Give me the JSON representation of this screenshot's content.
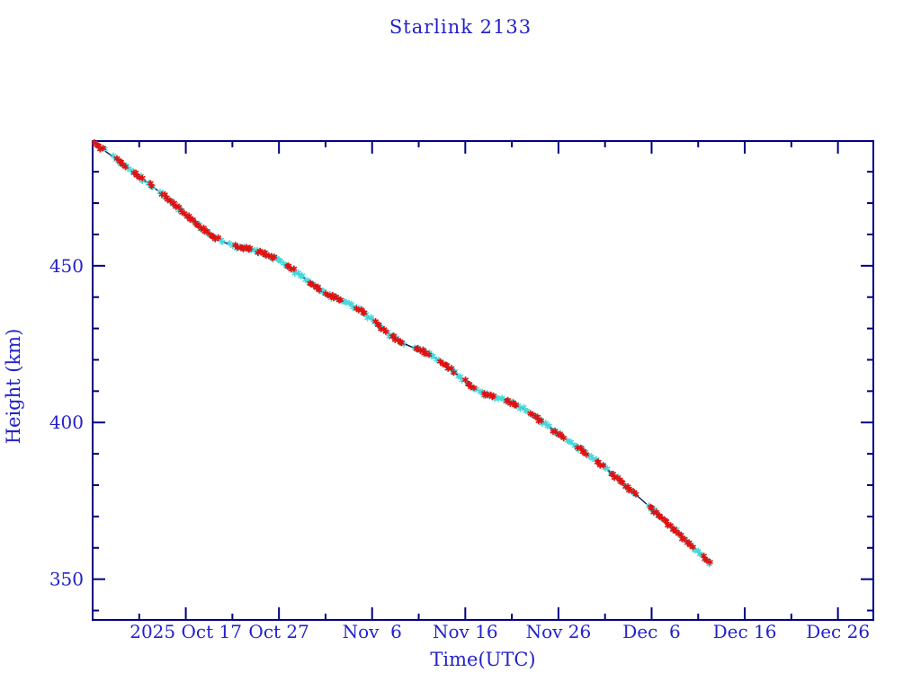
{
  "title": "Starlink 2133",
  "colors": {
    "background": "#ffffff",
    "frame": "#000080",
    "text": "#2222cc",
    "line": "#000048",
    "marker_primary": "#47d8dc",
    "marker_secondary": "#e01111"
  },
  "chart_data": {
    "type": "line",
    "title": "Starlink 2133",
    "xlabel": "Time(UTC)",
    "ylabel": "Height (km)",
    "grid": false,
    "legend": null,
    "x_axis": {
      "unit": "days since 2025-10-07 UTC",
      "min_day": 0,
      "max_day": 83.8,
      "major_ticks": [
        {
          "day": 10,
          "label": "2025 Oct 17"
        },
        {
          "day": 20,
          "label": "Oct 27"
        },
        {
          "day": 30,
          "label": "Nov  6"
        },
        {
          "day": 40,
          "label": "Nov 16"
        },
        {
          "day": 50,
          "label": "Nov 26"
        },
        {
          "day": 60,
          "label": "Dec  6"
        },
        {
          "day": 70,
          "label": "Dec 16"
        },
        {
          "day": 80,
          "label": "Dec 26"
        }
      ],
      "minor_tick_days": [
        5,
        15,
        25,
        35,
        45,
        55,
        65,
        75
      ]
    },
    "y_axis": {
      "min": 337,
      "max": 489.8,
      "major_ticks": [
        350,
        400,
        450
      ],
      "minor_ticks": [
        340,
        360,
        370,
        380,
        390,
        410,
        420,
        430,
        440,
        460,
        470,
        480
      ]
    },
    "series": [
      {
        "name": "orbit-height-decay",
        "marker": "asterisk",
        "points_day_km": [
          [
            0.2,
            489.3
          ],
          [
            1,
            487.3
          ],
          [
            2,
            485.2
          ],
          [
            3,
            483.0
          ],
          [
            4,
            480.7
          ],
          [
            5,
            478.5
          ],
          [
            6,
            476.3
          ],
          [
            7,
            474.0
          ],
          [
            8,
            471.6
          ],
          [
            9,
            469.0
          ],
          [
            10,
            466.3
          ],
          [
            11,
            463.8
          ],
          [
            12,
            461.3
          ],
          [
            13,
            459.2
          ],
          [
            14,
            457.6
          ],
          [
            15,
            456.5
          ],
          [
            16,
            455.8
          ],
          [
            17,
            455.2
          ],
          [
            18,
            454.3
          ],
          [
            19,
            453.2
          ],
          [
            20,
            451.8
          ],
          [
            21,
            449.8
          ],
          [
            22,
            447.6
          ],
          [
            23,
            445.4
          ],
          [
            24,
            443.2
          ],
          [
            25,
            441.2
          ],
          [
            26,
            439.8
          ],
          [
            27,
            438.7
          ],
          [
            28,
            437.2
          ],
          [
            29,
            435.2
          ],
          [
            30,
            432.8
          ],
          [
            31,
            430.2
          ],
          [
            32,
            427.8
          ],
          [
            33,
            425.8
          ],
          [
            34,
            424.4
          ],
          [
            35,
            423.3
          ],
          [
            36,
            422.0
          ],
          [
            37,
            420.2
          ],
          [
            38,
            418.0
          ],
          [
            39,
            415.6
          ],
          [
            40,
            413.2
          ],
          [
            41,
            410.8
          ],
          [
            42,
            409.2
          ],
          [
            43,
            408.2
          ],
          [
            44,
            407.4
          ],
          [
            45,
            406.3
          ],
          [
            46,
            404.8
          ],
          [
            47,
            402.9
          ],
          [
            48,
            400.8
          ],
          [
            49,
            398.6
          ],
          [
            50,
            396.4
          ],
          [
            51,
            394.2
          ],
          [
            52,
            392.2
          ],
          [
            53,
            390.2
          ],
          [
            54,
            388.0
          ],
          [
            55,
            385.6
          ],
          [
            56,
            383.0
          ],
          [
            57,
            380.4
          ],
          [
            58,
            377.8
          ],
          [
            59,
            375.2
          ],
          [
            60,
            372.5
          ],
          [
            61,
            369.8
          ],
          [
            62,
            367.0
          ],
          [
            63,
            364.2
          ],
          [
            64,
            361.4
          ],
          [
            65,
            358.6
          ],
          [
            66,
            355.8
          ],
          [
            66.3,
            355.0
          ]
        ],
        "red_marker_runs_day": [
          [
            0.2,
            1.2
          ],
          [
            2.6,
            3.6
          ],
          [
            4.3,
            5.3
          ],
          [
            6.0,
            6.4
          ],
          [
            7.3,
            13.6
          ],
          [
            15.2,
            17.0
          ],
          [
            17.6,
            19.6
          ],
          [
            20.7,
            21.7
          ],
          [
            23.2,
            24.6
          ],
          [
            25.0,
            26.7
          ],
          [
            28.2,
            29.3
          ],
          [
            30.2,
            31.6
          ],
          [
            31.9,
            33.2
          ],
          [
            34.6,
            36.1
          ],
          [
            37.2,
            38.7
          ],
          [
            39.8,
            40.9
          ],
          [
            41.9,
            43.3
          ],
          [
            44.3,
            45.7
          ],
          [
            46.9,
            48.3
          ],
          [
            49.3,
            50.7
          ],
          [
            51.9,
            53.0
          ],
          [
            53.9,
            54.9
          ],
          [
            55.5,
            58.3
          ],
          [
            59.8,
            64.5
          ],
          [
            65.4,
            66.3
          ]
        ],
        "marker_gap_runs_day": [
          [
            1.3,
            2.1
          ],
          [
            5.4,
            5.9
          ],
          [
            6.5,
            7.2
          ],
          [
            14.0,
            14.5
          ],
          [
            33.5,
            34.3
          ],
          [
            58.4,
            59.7
          ]
        ]
      }
    ]
  }
}
